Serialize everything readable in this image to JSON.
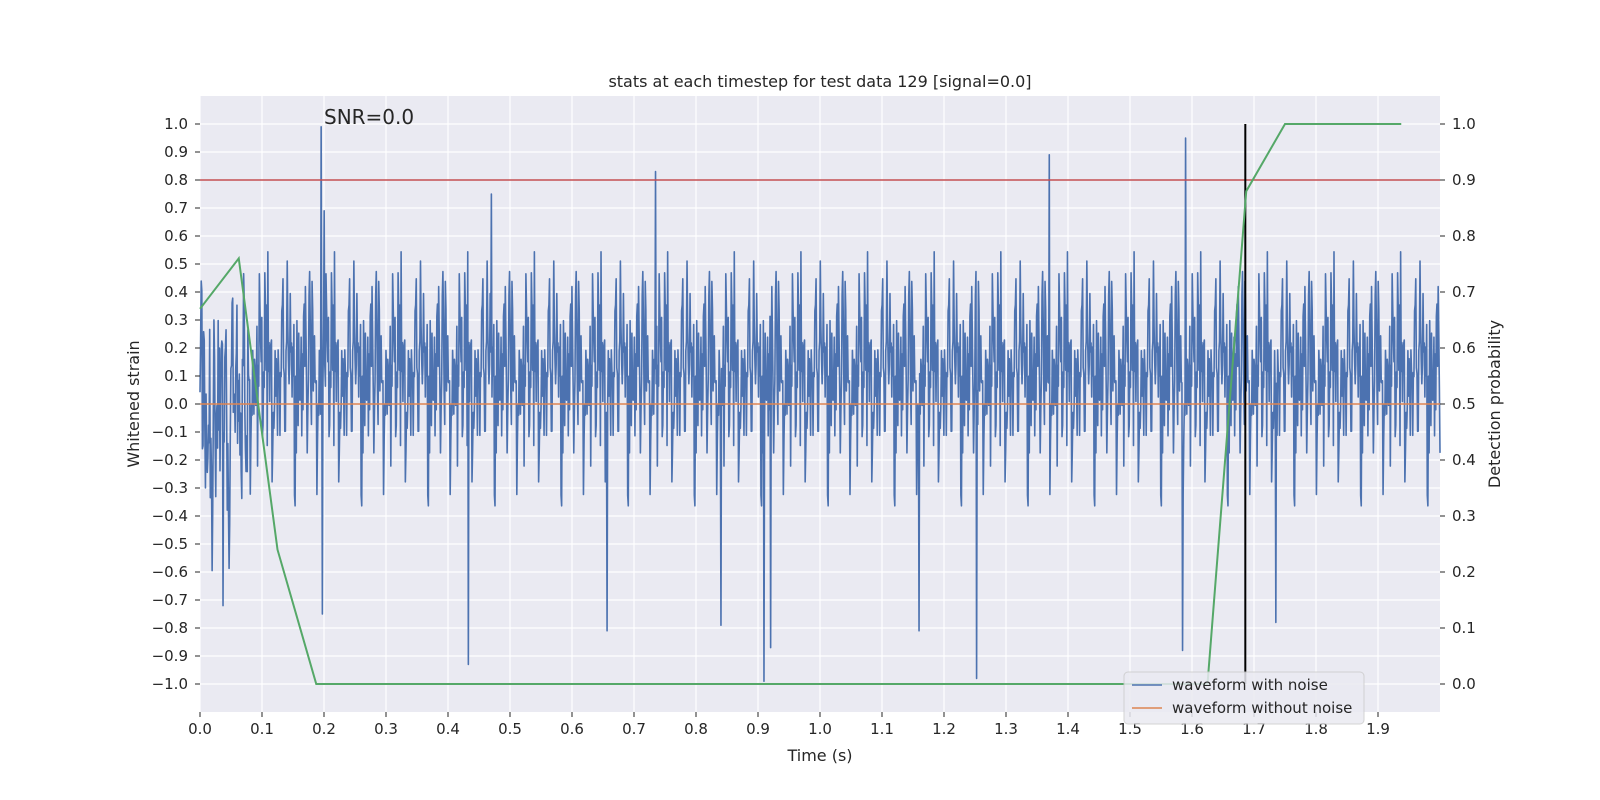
{
  "chart_data": {
    "type": "line",
    "title": "stats at each timestep for test data 129 [signal=0.0]",
    "xlabel": "Time (s)",
    "ylabel": "Whitened strain",
    "y2label": "Detection probability",
    "xlim": [
      0.0,
      2.0
    ],
    "ylim": [
      -1.1,
      1.1
    ],
    "y2lim": [
      -0.05,
      1.05
    ],
    "xticks": [
      0.0,
      0.1,
      0.2,
      0.3,
      0.4,
      0.5,
      0.6,
      0.7,
      0.8,
      0.9,
      1.0,
      1.1,
      1.2,
      1.3,
      1.4,
      1.5,
      1.6,
      1.7,
      1.8,
      1.9
    ],
    "yticks": [
      -1.0,
      -0.9,
      -0.8,
      -0.7,
      -0.6,
      -0.5,
      -0.4,
      -0.3,
      -0.2,
      -0.1,
      0.0,
      0.1,
      0.2,
      0.3,
      0.4,
      0.5,
      0.6,
      0.7,
      0.8,
      0.9,
      1.0
    ],
    "y2ticks": [
      0.0,
      0.1,
      0.2,
      0.3,
      0.4,
      0.5,
      0.6,
      0.7,
      0.8,
      0.9,
      1.0
    ],
    "grid": true,
    "legend_position": "lower-right",
    "annotation": "SNR=0.0",
    "threshold_y": 0.8,
    "marker_x": 1.686,
    "noise_series": {
      "name": "waveform with noise",
      "color": "#4c72b0",
      "samples": 2048,
      "amplitude_envelope": 0.65,
      "peaks": [
        {
          "x": 0.195,
          "y": 0.99
        },
        {
          "x": 0.2,
          "y": 0.69
        },
        {
          "x": 0.197,
          "y": -0.75
        },
        {
          "x": 0.037,
          "y": -0.72
        },
        {
          "x": 0.433,
          "y": -0.93
        },
        {
          "x": 0.47,
          "y": 0.75
        },
        {
          "x": 0.735,
          "y": 0.83
        },
        {
          "x": 0.657,
          "y": -0.81
        },
        {
          "x": 0.91,
          "y": -0.99
        },
        {
          "x": 0.92,
          "y": -0.87
        },
        {
          "x": 1.253,
          "y": -0.98
        },
        {
          "x": 1.37,
          "y": 0.89
        },
        {
          "x": 1.59,
          "y": 0.95
        },
        {
          "x": 1.585,
          "y": -0.88
        },
        {
          "x": 1.735,
          "y": -0.78
        },
        {
          "x": 1.16,
          "y": -0.81
        },
        {
          "x": 0.84,
          "y": -0.79
        }
      ]
    },
    "clean_series": {
      "name": "waveform without noise",
      "color": "#dd8452",
      "x": [
        0.0,
        2.0
      ],
      "y": [
        0.0,
        0.0
      ]
    },
    "probability_series": {
      "name": "detection probability",
      "color": "#55a868",
      "x": [
        0.0,
        0.0625,
        0.125,
        0.1875,
        0.25,
        0.5,
        1.0,
        1.5,
        1.625,
        1.6875,
        1.75,
        1.9375
      ],
      "y": [
        0.67,
        0.76,
        0.24,
        0.0,
        0.0,
        0.0,
        0.0,
        0.0,
        0.0,
        0.88,
        1.0,
        1.0
      ]
    },
    "colors": {
      "plot_bg": "#eaeaf2",
      "grid": "#ffffff",
      "threshold": "#c44e52",
      "marker": "#000000"
    }
  }
}
